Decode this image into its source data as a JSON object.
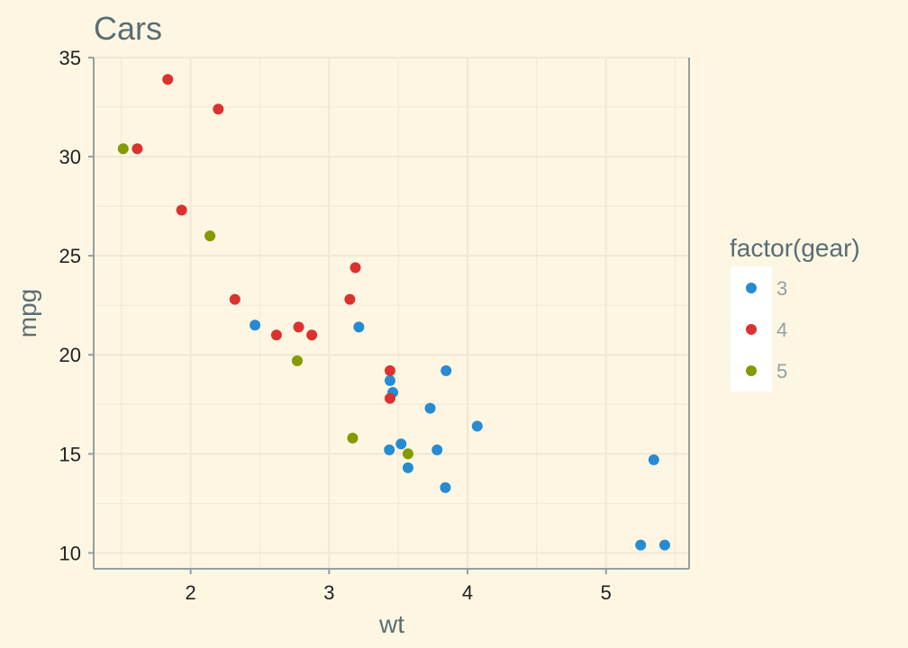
{
  "chart_data": {
    "type": "scatter",
    "title": "Cars",
    "xlabel": "wt",
    "ylabel": "mpg",
    "xlim": [
      1.3,
      5.6
    ],
    "ylim": [
      9.2,
      35.0
    ],
    "x_ticks": [
      2,
      3,
      4,
      5
    ],
    "y_ticks": [
      10,
      15,
      20,
      25,
      30,
      35
    ],
    "grid": true,
    "legend": {
      "title": "factor(gear)",
      "position": "right",
      "entries": [
        {
          "label": "3",
          "color": "#268bd2"
        },
        {
          "label": "4",
          "color": "#dc322f"
        },
        {
          "label": "5",
          "color": "#859900"
        }
      ]
    },
    "series": [
      {
        "name": "3",
        "color": "#268bd2",
        "points": [
          {
            "x": 2.465,
            "y": 21.5
          },
          {
            "x": 3.215,
            "y": 21.4
          },
          {
            "x": 3.44,
            "y": 18.7
          },
          {
            "x": 3.46,
            "y": 18.1
          },
          {
            "x": 3.845,
            "y": 19.2
          },
          {
            "x": 3.73,
            "y": 17.3
          },
          {
            "x": 4.07,
            "y": 16.4
          },
          {
            "x": 3.52,
            "y": 15.5
          },
          {
            "x": 3.435,
            "y": 15.2
          },
          {
            "x": 3.78,
            "y": 15.2
          },
          {
            "x": 3.57,
            "y": 14.3
          },
          {
            "x": 3.84,
            "y": 13.3
          },
          {
            "x": 5.345,
            "y": 14.7
          },
          {
            "x": 5.25,
            "y": 10.4
          },
          {
            "x": 5.424,
            "y": 10.4
          }
        ]
      },
      {
        "name": "4",
        "color": "#dc322f",
        "points": [
          {
            "x": 1.835,
            "y": 33.9
          },
          {
            "x": 2.2,
            "y": 32.4
          },
          {
            "x": 1.615,
            "y": 30.4
          },
          {
            "x": 1.935,
            "y": 27.3
          },
          {
            "x": 3.19,
            "y": 24.4
          },
          {
            "x": 2.32,
            "y": 22.8
          },
          {
            "x": 3.15,
            "y": 22.8
          },
          {
            "x": 2.78,
            "y": 21.4
          },
          {
            "x": 2.62,
            "y": 21.0
          },
          {
            "x": 2.875,
            "y": 21.0
          },
          {
            "x": 3.44,
            "y": 19.2
          },
          {
            "x": 3.44,
            "y": 17.8
          }
        ]
      },
      {
        "name": "5",
        "color": "#859900",
        "points": [
          {
            "x": 1.513,
            "y": 30.4
          },
          {
            "x": 2.14,
            "y": 26.0
          },
          {
            "x": 2.77,
            "y": 19.7
          },
          {
            "x": 3.17,
            "y": 15.8
          },
          {
            "x": 3.57,
            "y": 15.0
          }
        ]
      }
    ]
  },
  "colors": {
    "background": "#fdf6e3",
    "panel": "#fdf6e3",
    "grid": "#eee8d5",
    "axis": "#93a1a1",
    "text": "#586e75"
  }
}
